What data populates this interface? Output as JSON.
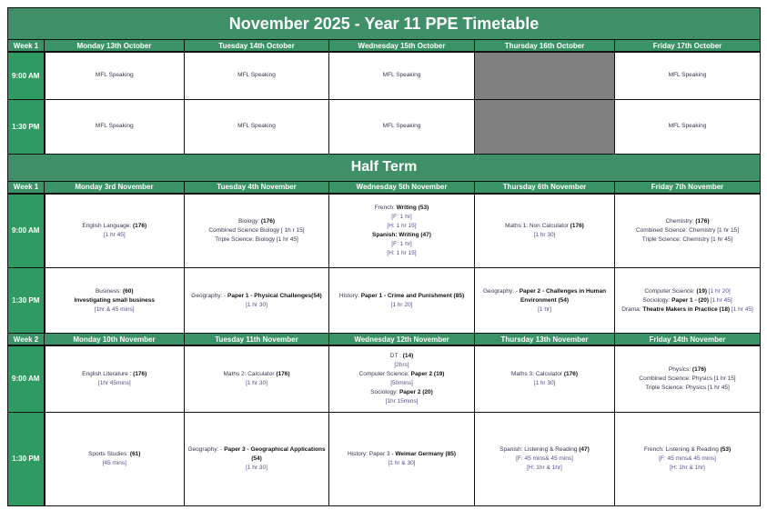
{
  "title": "November 2025 - Year 11 PPE Timetable",
  "half_term": "Half Term",
  "colors": {
    "header_green": "#3f9068",
    "time_green": "#2f9a62",
    "blocked_grey": "#808080"
  },
  "sections": [
    {
      "week": "Week 1",
      "days": [
        "Monday 13th October",
        "Tuesday 14th October",
        "Wednesday 15th October",
        "Thursday 16th October",
        "Friday 17th October"
      ],
      "rows": [
        {
          "time": "9:00 AM",
          "height": 52,
          "cells": [
            [
              [
                {
                  "t": "MFL Speaking"
                }
              ]
            ],
            [
              [
                {
                  "t": "MFL Speaking"
                }
              ]
            ],
            [
              [
                {
                  "t": "MFL Speaking"
                }
              ]
            ],
            null,
            [
              [
                {
                  "t": "MFL Speaking"
                }
              ]
            ]
          ]
        },
        {
          "time": "1:30 PM",
          "height": 60,
          "cells": [
            [
              [
                {
                  "t": "MFL Speaking"
                }
              ]
            ],
            [
              [
                {
                  "t": "MFL Speaking"
                }
              ]
            ],
            [
              [
                {
                  "t": "MFL Speaking"
                }
              ]
            ],
            null,
            [
              [
                {
                  "t": "MFL Speaking"
                }
              ]
            ]
          ]
        }
      ]
    },
    {
      "week": "Week 1",
      "days": [
        "Monday 3rd November",
        "Tuesday 4th November",
        "Wednesday 5th November",
        "Thursday 6th November",
        "Friday 7th November"
      ],
      "rows": [
        {
          "time": "9:00 AM",
          "height": 82,
          "cells": [
            [
              [
                {
                  "t": "English Language: "
                },
                {
                  "t": "(176)",
                  "b": 1
                }
              ],
              [
                {
                  "t": "[1 hr 45]",
                  "d": 1
                }
              ]
            ],
            [
              [
                {
                  "t": "Biology: "
                },
                {
                  "t": "(176)",
                  "b": 1
                }
              ],
              [
                {
                  "t": "Combined Science Biology [ 1h r 15]"
                }
              ],
              [
                {
                  "t": "Triple Science: Biology [1 hr 45]"
                }
              ]
            ],
            [
              [
                {
                  "t": "French: "
                },
                {
                  "t": "Writing ",
                  "b": 1
                },
                {
                  "t": "(53)",
                  "b": 1
                }
              ],
              [
                {
                  "t": "[F: 1 hr]",
                  "d": 1
                }
              ],
              [
                {
                  "t": "[H: 1 hr 15]",
                  "d": 1
                }
              ],
              [
                {
                  "t": "Spanish: Writing (47)",
                  "b": 1
                }
              ],
              [
                {
                  "t": "[F: 1 hr]",
                  "d": 1
                }
              ],
              [
                {
                  "t": "[H: 1 hr 15]",
                  "d": 1
                }
              ]
            ],
            [
              [
                {
                  "t": "Maths 1: Non Calculator "
                },
                {
                  "t": "(176)",
                  "b": 1
                }
              ],
              [
                {
                  "t": "[1 hr 30]",
                  "d": 1
                }
              ]
            ],
            [
              [
                {
                  "t": "Chemistry:  "
                },
                {
                  "t": "(176)",
                  "b": 1
                }
              ],
              [
                {
                  "t": "Combined Science: Chemistry [1 hr 15]"
                }
              ],
              [
                {
                  "t": "Triple Science: Chemistry [1 hr 45]"
                }
              ]
            ]
          ]
        },
        {
          "time": "1:30 PM",
          "height": 72,
          "cells": [
            [
              [
                {
                  "t": "Business: "
                },
                {
                  "t": "(60)",
                  "b": 1
                }
              ],
              [
                {
                  "t": "Investigating small business",
                  "b": 1
                }
              ],
              [
                {
                  "t": "[1hr & 45 mins]",
                  "d": 1
                }
              ]
            ],
            [
              [
                {
                  "t": "Geography: - "
                },
                {
                  "t": "Paper 1 - Physical Challenges(54)",
                  "b": 1
                }
              ],
              [
                {
                  "t": "[1 hr 30]",
                  "d": 1
                }
              ]
            ],
            [
              [
                {
                  "t": "History: "
                },
                {
                  "t": "Paper 1 - Crime and Punishment (85)",
                  "b": 1
                }
              ],
              [
                {
                  "t": "[1 hr 20]",
                  "d": 1
                }
              ]
            ],
            [
              [
                {
                  "t": "Geography: - "
                },
                {
                  "t": "Paper 2 - Challenges in Human",
                  "b": 1
                }
              ],
              [
                {
                  "t": "Environment (54)",
                  "b": 1
                }
              ],
              [
                {
                  "t": "[1 hr]",
                  "d": 1
                }
              ]
            ],
            [
              [
                {
                  "t": "Computer Science: "
                },
                {
                  "t": "(19)",
                  "b": 1
                },
                {
                  "t": " [1 hr 20]",
                  "d": 1
                }
              ],
              [
                {
                  "t": "Sociology:  "
                },
                {
                  "t": "Paper 1 - (20)",
                  "b": 1
                },
                {
                  "t": " [1 hr 45]",
                  "d": 1
                }
              ],
              [
                {
                  "t": "Drama: "
                },
                {
                  "t": "Theatre Makers in Practice (18)",
                  "b": 1
                },
                {
                  "t": " [1 hr 45]",
                  "d": 1
                }
              ]
            ]
          ]
        }
      ]
    },
    {
      "week": "Week 2",
      "days": [
        "Monday 10th November",
        "Tuesday 11th November",
        "Wednesday 12th November",
        "Thursday 13th November",
        "Friday 14th November"
      ],
      "rows": [
        {
          "time": "9:00 AM",
          "height": 73,
          "cells": [
            [
              [
                {
                  "t": "English Literature : "
                },
                {
                  "t": "(176)",
                  "b": 1
                }
              ],
              [
                {
                  "t": "[1hr 45mins]",
                  "d": 1
                }
              ]
            ],
            [
              [
                {
                  "t": "Maths 2: Calculator "
                },
                {
                  "t": "(176)",
                  "b": 1
                }
              ],
              [
                {
                  "t": "[1 hr 30]",
                  "d": 1
                }
              ]
            ],
            [
              [
                {
                  "t": "DT :  "
                },
                {
                  "t": "(14)",
                  "b": 1
                }
              ],
              [
                {
                  "t": "[2hrs]",
                  "d": 1
                }
              ],
              [
                {
                  "t": "Computer Science: "
                },
                {
                  "t": "Paper 2 (19)",
                  "b": 1
                }
              ],
              [
                {
                  "t": "[50mins]",
                  "d": 1
                }
              ],
              [
                {
                  "t": "Sociology: "
                },
                {
                  "t": "Paper 2 (20)",
                  "b": 1
                }
              ],
              [
                {
                  "t": "[1hr 15mins]",
                  "d": 1
                }
              ]
            ],
            [
              [
                {
                  "t": "Maths 3: Calculator "
                },
                {
                  "t": "(176)",
                  "b": 1
                }
              ],
              [
                {
                  "t": "[1 hr 30]",
                  "d": 1
                }
              ]
            ],
            [
              [
                {
                  "t": "Physics: "
                },
                {
                  "t": "(176)",
                  "b": 1
                }
              ],
              [
                {
                  "t": "Combined Science: Physics [1 hr 15]"
                }
              ],
              [
                {
                  "t": "Triple Science: Physics [1 hr 45]"
                }
              ]
            ]
          ]
        },
        {
          "time": "1:30 PM",
          "height": 103,
          "cells": [
            [
              [
                {
                  "t": "Sports Studies:  "
                },
                {
                  "t": "(61)",
                  "b": 1
                }
              ],
              [
                {
                  "t": "[45 mins]",
                  "d": 1
                }
              ]
            ],
            [
              [
                {
                  "t": "Geography: - "
                },
                {
                  "t": "Paper 3 - Geographical Applications",
                  "b": 1
                }
              ],
              [
                {
                  "t": "(54)",
                  "b": 1
                }
              ],
              [
                {
                  "t": "[1 hr 30]",
                  "d": 1
                }
              ]
            ],
            [
              [
                {
                  "t": "History: Paper 3 - "
                },
                {
                  "t": "Weimar Germany (85)",
                  "b": 1
                }
              ],
              [
                {
                  "t": "[1 hr & 30]",
                  "d": 1
                }
              ]
            ],
            [
              [
                {
                  "t": "Spanish: Listening & Reading "
                },
                {
                  "t": "(47)",
                  "b": 1
                }
              ],
              [
                {
                  "t": "[F: 45 mins& 45 mins]",
                  "d": 1
                }
              ],
              [
                {
                  "t": "[H: 1hr & 1hr]",
                  "d": 1
                }
              ]
            ],
            [
              [
                {
                  "t": "French: Listening & Reading "
                },
                {
                  "t": "(53)",
                  "b": 1
                }
              ],
              [
                {
                  "t": "[F: 45 mins& 45 mins]",
                  "d": 1
                }
              ],
              [
                {
                  "t": "[H: 1hr & 1hr]",
                  "d": 1
                }
              ]
            ]
          ]
        }
      ]
    }
  ]
}
